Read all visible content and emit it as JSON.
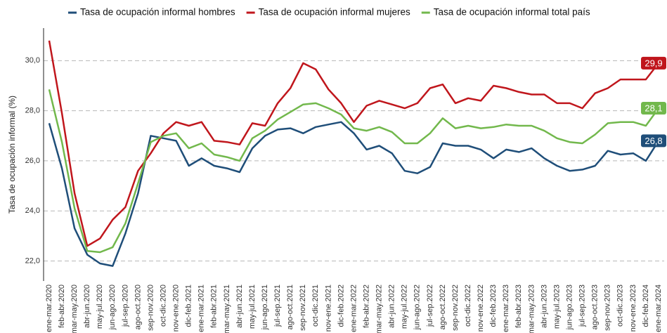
{
  "chart_data": {
    "type": "line",
    "y_label": "Tasa de ocupación informal (%)",
    "categories": [
      "ene-mar.2020",
      "feb-abr.2020",
      "mar-may.2020",
      "abr-jun.2020",
      "may-jul.2020",
      "jun-ago.2020",
      "jul-sep.2020",
      "ago-oct.2020",
      "sep-nov.2020",
      "oct-dic.2020",
      "nov-ene.2020",
      "dic-feb.2021",
      "ene-mar.2021",
      "feb-abr.2021",
      "mar-may.2021",
      "abr-jun.2021",
      "may-jul.2021",
      "jun-ago.2021",
      "jul-sep.2021",
      "ago-oct.2021",
      "sep-nov.2021",
      "oct-dic.2021",
      "nov-ene.2021",
      "dic-feb.2022",
      "ene-mar.2022",
      "feb-abr.2022",
      "mar-may.2022",
      "abr-jun.2022",
      "may-jul.2022",
      "jun-ago.2022",
      "jul-sep.2022",
      "ago-oct.2022",
      "sep-nov.2022",
      "oct-dic.2022",
      "nov-ene.2022",
      "dic-feb.2023",
      "ene-mar.2023",
      "feb-abr.2023",
      "mar-may.2023",
      "abr-jun.2023",
      "may-jul.2023",
      "jun-ago.2023",
      "jul-sep.2023",
      "ago-oct.2023",
      "sep-nov.2023",
      "oct-dic.2023",
      "nov-ene.2023",
      "dic-feb.2024",
      "ene-mar.2024"
    ],
    "series": [
      {
        "name": "Tasa de ocupación informal hombres",
        "color": "#1f4e79",
        "values": [
          27.5,
          25.7,
          23.3,
          22.25,
          21.9,
          21.8,
          23.1,
          24.7,
          27.0,
          26.9,
          26.8,
          25.8,
          26.1,
          25.8,
          25.7,
          25.55,
          26.5,
          27.0,
          27.25,
          27.3,
          27.1,
          27.35,
          27.45,
          27.55,
          27.1,
          26.45,
          26.6,
          26.3,
          25.6,
          25.5,
          25.75,
          26.7,
          26.6,
          26.6,
          26.45,
          26.1,
          26.45,
          26.35,
          26.5,
          26.1,
          25.8,
          25.6,
          25.65,
          25.8,
          26.4,
          26.25,
          26.3,
          26.0,
          26.8
        ],
        "value_labels": [
          null,
          null,
          null,
          null,
          null,
          null,
          null,
          null,
          null,
          null,
          null,
          null,
          null,
          null,
          null,
          null,
          null,
          null,
          null,
          null,
          null,
          null,
          null,
          null,
          null,
          null,
          null,
          null,
          null,
          null,
          null,
          null,
          null,
          null,
          null,
          null,
          null,
          null,
          null,
          null,
          null,
          null,
          null,
          null,
          null,
          null,
          null,
          null,
          "26,8"
        ]
      },
      {
        "name": "Tasa de ocupación informal mujeres",
        "color": "#c0161c",
        "values": [
          30.8,
          27.9,
          24.7,
          22.6,
          22.9,
          23.65,
          24.15,
          25.6,
          26.3,
          27.1,
          27.55,
          27.4,
          27.55,
          26.8,
          26.75,
          26.65,
          27.5,
          27.4,
          28.3,
          28.9,
          29.9,
          29.65,
          28.85,
          28.3,
          27.55,
          28.2,
          28.4,
          28.25,
          28.1,
          28.3,
          28.9,
          29.05,
          28.3,
          28.5,
          28.4,
          29.0,
          28.9,
          28.75,
          28.65,
          28.65,
          28.3,
          28.3,
          28.1,
          28.7,
          28.9,
          29.25,
          29.25,
          29.25,
          29.9
        ],
        "value_labels": [
          null,
          null,
          null,
          null,
          null,
          null,
          null,
          null,
          null,
          null,
          null,
          null,
          null,
          null,
          null,
          null,
          null,
          null,
          null,
          null,
          null,
          null,
          null,
          null,
          null,
          null,
          null,
          null,
          null,
          null,
          null,
          null,
          null,
          null,
          null,
          null,
          null,
          null,
          null,
          null,
          null,
          null,
          null,
          null,
          null,
          null,
          null,
          null,
          "29,9"
        ]
      },
      {
        "name": "Tasa de ocupación informal total país",
        "color": "#72b84c",
        "values": [
          28.85,
          26.75,
          24.1,
          22.4,
          22.35,
          22.55,
          23.5,
          25.1,
          26.75,
          27.0,
          27.1,
          26.5,
          26.7,
          26.25,
          26.15,
          26.0,
          26.9,
          27.2,
          27.65,
          27.95,
          28.25,
          28.3,
          28.1,
          27.85,
          27.3,
          27.2,
          27.35,
          27.15,
          26.7,
          26.7,
          27.1,
          27.7,
          27.3,
          27.4,
          27.3,
          27.35,
          27.45,
          27.4,
          27.4,
          27.2,
          26.9,
          26.75,
          26.7,
          27.05,
          27.5,
          27.55,
          27.55,
          27.4,
          28.1
        ],
        "value_labels": [
          null,
          null,
          null,
          null,
          null,
          null,
          null,
          null,
          null,
          null,
          null,
          null,
          null,
          null,
          null,
          null,
          null,
          null,
          null,
          null,
          null,
          null,
          null,
          null,
          null,
          null,
          null,
          null,
          null,
          null,
          null,
          null,
          null,
          null,
          null,
          null,
          null,
          null,
          null,
          null,
          null,
          null,
          null,
          null,
          null,
          null,
          null,
          null,
          "28,1"
        ]
      }
    ],
    "ylim": [
      21.2,
      31.3
    ],
    "yticks": [
      {
        "value": 22,
        "label": "22,0"
      },
      {
        "value": 24,
        "label": "24,0"
      },
      {
        "value": 26,
        "label": "26,0"
      },
      {
        "value": 28,
        "label": "28,0"
      },
      {
        "value": 30,
        "label": "30,0"
      }
    ],
    "grid": true,
    "legend": "top"
  }
}
